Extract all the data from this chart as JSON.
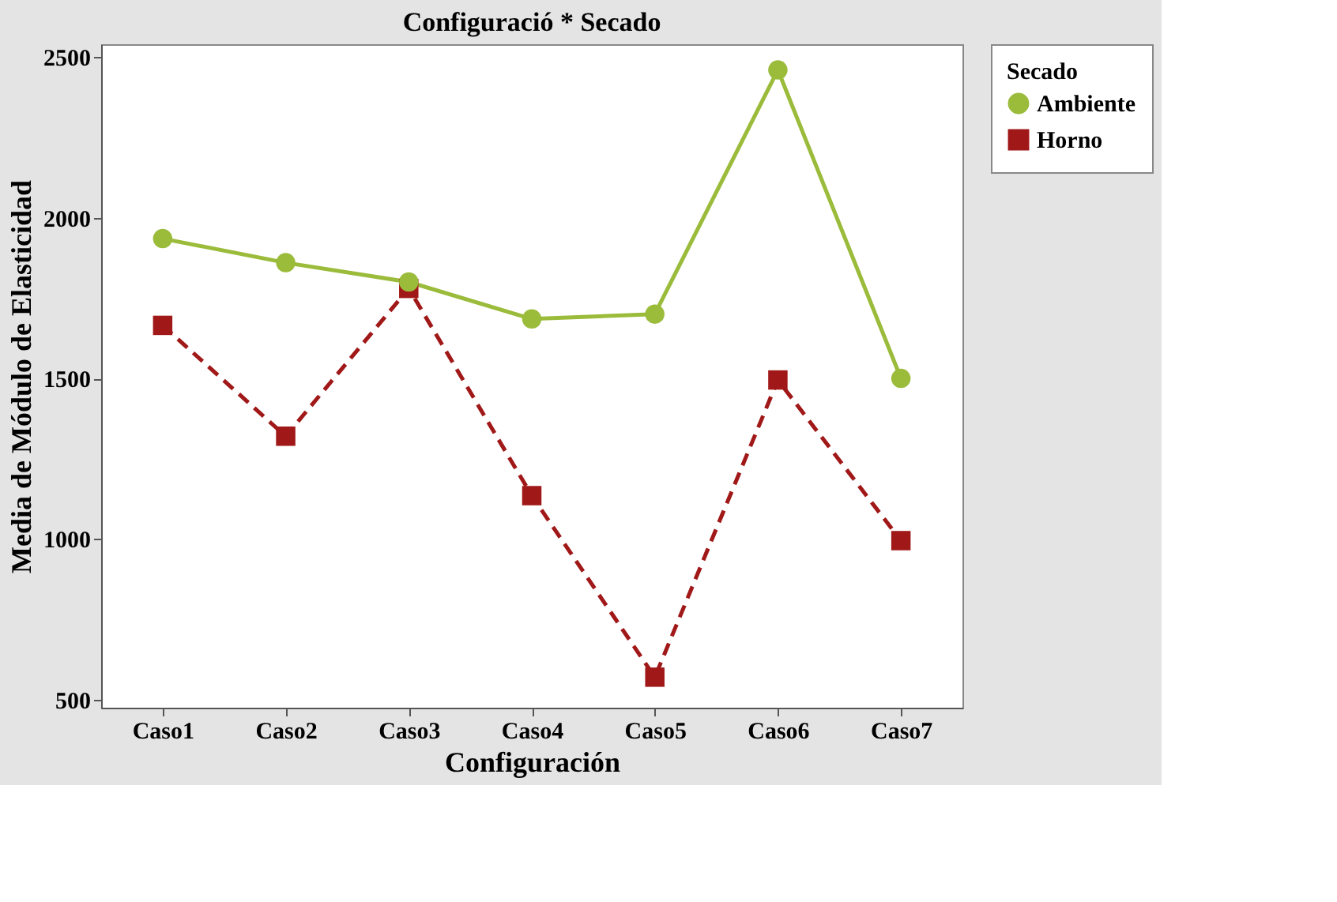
{
  "chart_data": {
    "type": "line",
    "title": "Configuració * Secado",
    "xlabel": "Configuración",
    "ylabel": "Media de Módulo de Elasticidad",
    "legend_title": "Secado",
    "categories": [
      "Caso1",
      "Caso2",
      "Caso3",
      "Caso4",
      "Caso5",
      "Caso6",
      "Caso7"
    ],
    "series": [
      {
        "name": "Ambiente",
        "color": "#9bbb3b",
        "marker": "circle",
        "line_style": "solid",
        "values": [
          1935,
          1860,
          1800,
          1685,
          1700,
          2460,
          1500
        ]
      },
      {
        "name": "Horno",
        "color": "#a01818",
        "marker": "square",
        "line_style": "dashed",
        "values": [
          1665,
          1320,
          1780,
          1135,
          570,
          1495,
          995
        ]
      }
    ],
    "ylim": [
      475,
      2540
    ],
    "yticks": [
      500,
      1000,
      1500,
      2000,
      2500
    ],
    "grid": false,
    "legend": "top right"
  }
}
